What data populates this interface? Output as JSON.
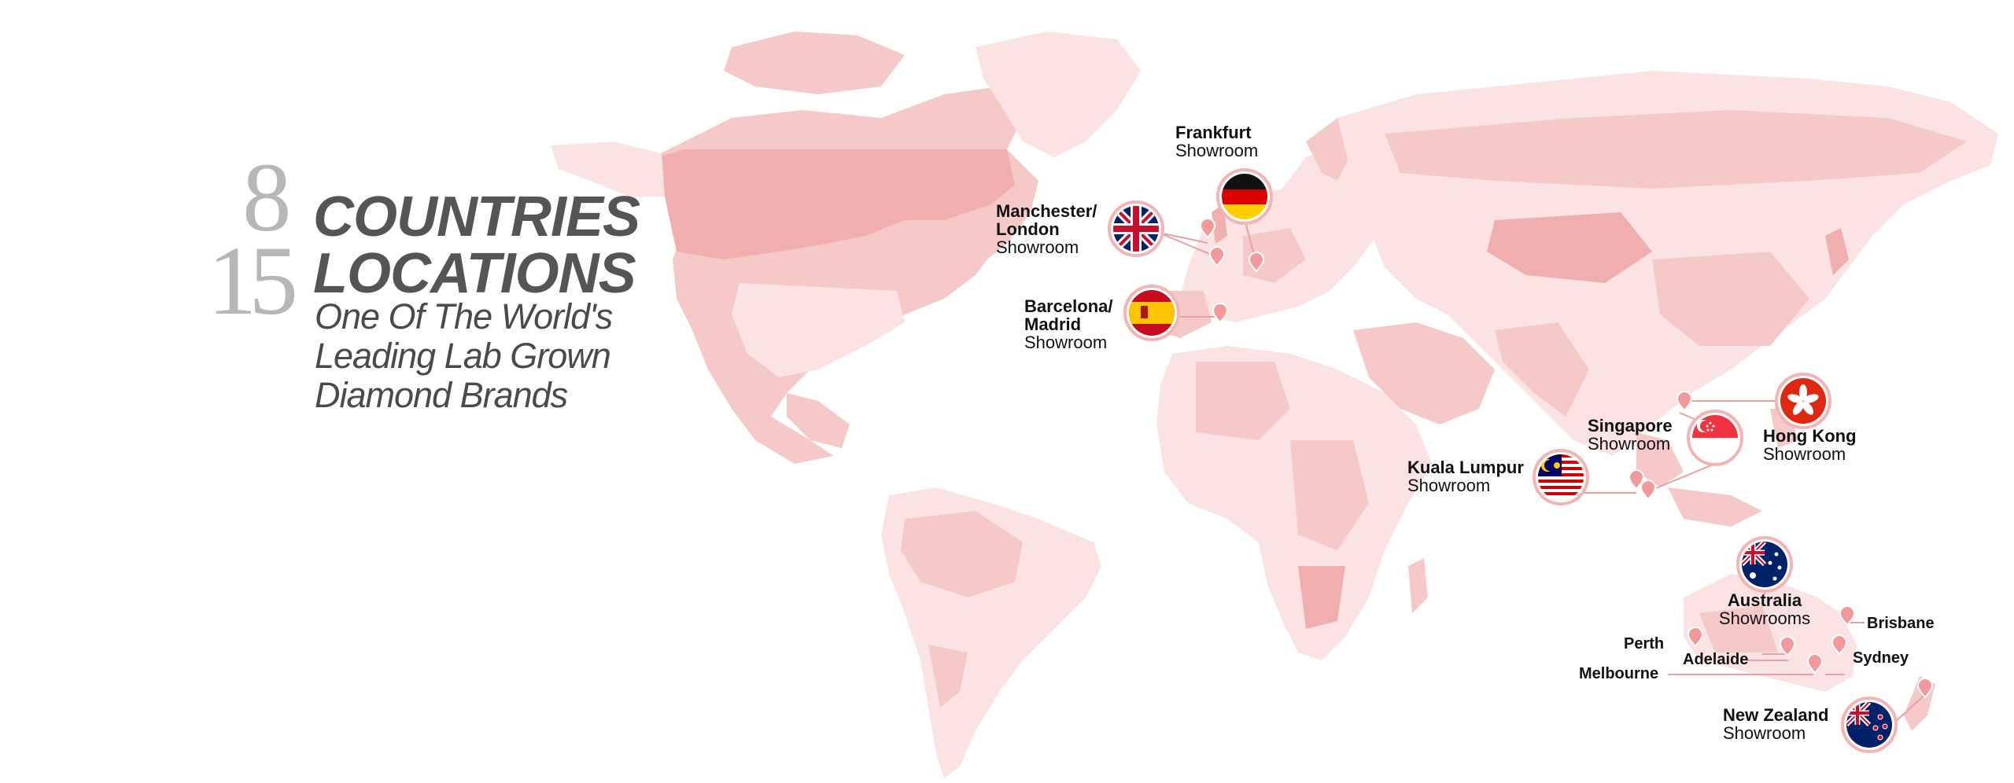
{
  "headline": {
    "countries_count": "8",
    "countries_word": "COUNTRIES",
    "locations_count": "15",
    "locations_word": "LOCATIONS",
    "tagline": [
      "One Of The World's",
      "Leading Lab Grown",
      "Diamond Brands"
    ]
  },
  "showrooms": {
    "frankfurt": {
      "name": "Frankfurt",
      "sub": "Showroom"
    },
    "manchester": {
      "name_lines": [
        "Manchester/",
        "London"
      ],
      "sub": "Showroom"
    },
    "barcelona": {
      "name_lines": [
        "Barcelona/",
        "Madrid"
      ],
      "sub": "Showroom"
    },
    "singapore": {
      "name": "Singapore",
      "sub": "Showroom"
    },
    "hong_kong": {
      "name": "Hong Kong",
      "sub": "Showroom"
    },
    "kuala_lumpur": {
      "name": "Kuala Lumpur",
      "sub": "Showroom"
    },
    "australia": {
      "name": "Australia",
      "sub": "Showrooms"
    },
    "new_zealand": {
      "name": "New Zealand",
      "sub": "Showroom"
    }
  },
  "australia_cities": {
    "perth": "Perth",
    "adelaide": "Adelaide",
    "melbourne": "Melbourne",
    "brisbane": "Brisbane",
    "sydney": "Sydney"
  },
  "flags": [
    "germany-flag",
    "uk-flag",
    "spain-flag",
    "singapore-flag",
    "hong-kong-flag",
    "malaysia-flag",
    "australia-flag",
    "new-zealand-flag"
  ],
  "colors": {
    "land_light": "#fbe3e3",
    "land_mid": "#f6c9c9",
    "land_dark": "#f0aeae",
    "pin": "#f29a9a",
    "connector": "#e8a0a0",
    "number_gray": "#b7b7b7",
    "heading_gray": "#555555"
  }
}
